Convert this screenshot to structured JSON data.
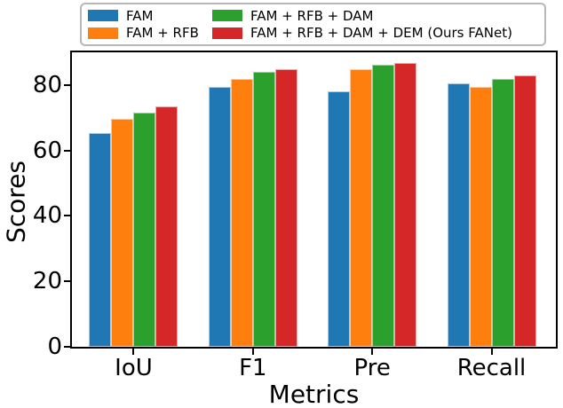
{
  "chart_data": {
    "type": "bar",
    "title": "",
    "xlabel": "Metrics",
    "ylabel": "Scores",
    "categories": [
      "IoU",
      "F1",
      "Pre",
      "Recall"
    ],
    "series": [
      {
        "name": "FAM",
        "color": "#1f77b4",
        "edge_color": "#a9cce6",
        "values": [
          65.2,
          79.3,
          78.2,
          80.4
        ]
      },
      {
        "name": "FAM + RFB",
        "color": "#ff7f0e",
        "edge_color": "#ffc append99e",
        "values": [
          69.7,
          82.0,
          84.9,
          79.3
        ]
      },
      {
        "name": "FAM + RFB + DAM",
        "color": "#2ca02c",
        "edge_color": "#9fd49f",
        "values": [
          71.5,
          84.0,
          86.3,
          82.0
        ]
      },
      {
        "name": "FAM + RFB + DAM + DEM (Ours FANet)",
        "color": "#d62728",
        "edge_color": "#efa9a9",
        "values": [
          73.5,
          84.9,
          86.7,
          82.9
        ]
      }
    ],
    "yticks": [
      0,
      20,
      40,
      60,
      80
    ],
    "ylim": [
      0,
      90
    ],
    "grid": false,
    "legend_position": "top",
    "legend_columns": 2,
    "axis_color": "#000000",
    "background_color": "#ffffff"
  }
}
